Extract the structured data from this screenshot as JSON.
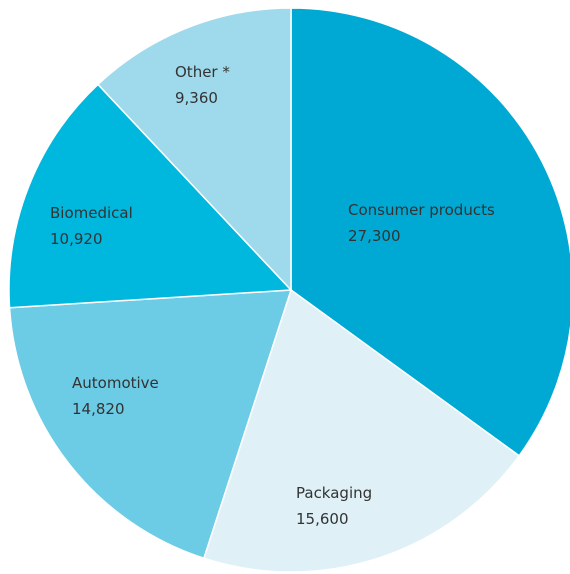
{
  "chart_data": {
    "type": "pie",
    "title": "",
    "start": "12 o'clock",
    "direction": "clockwise",
    "slices": [
      {
        "label": "Consumer products",
        "value": 27300,
        "value_label": "27,300",
        "color": "#00a9d4"
      },
      {
        "label": "Packaging",
        "value": 15600,
        "value_label": "15,600",
        "color": "#dff0f7"
      },
      {
        "label": "Automotive",
        "value": 14820,
        "value_label": "14,820",
        "color": "#6ccbe5"
      },
      {
        "label": "Biomedical",
        "value": 10920,
        "value_label": "10,920",
        "color": "#00b7dd"
      },
      {
        "label": "Other *",
        "value": 9360,
        "value_label": "9,360",
        "color": "#9edaec"
      }
    ]
  }
}
